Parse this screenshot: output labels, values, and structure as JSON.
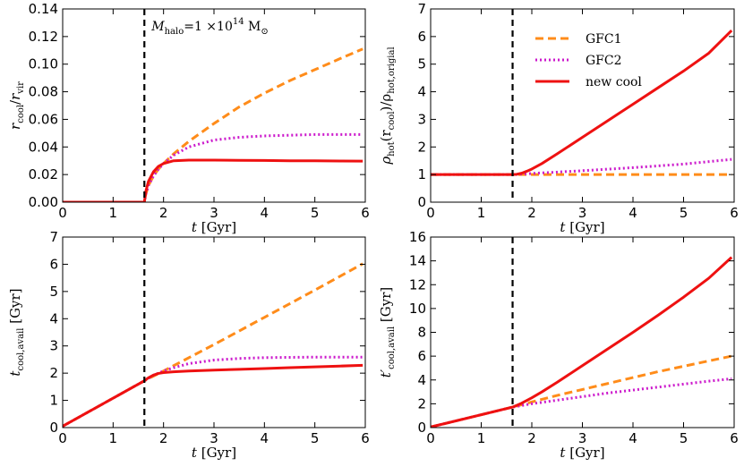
{
  "chart_data": [
    {
      "type": "line",
      "id": "rcool",
      "title": "",
      "xlabel": "t [Gyr]",
      "ylabel": "r_cool/r_vir",
      "ylabel_parts": {
        "main": "r",
        "sub": "cool",
        "sep": "/",
        "main2": "r",
        "sub2": "vir"
      },
      "xlim": [
        0,
        6
      ],
      "ylim": [
        0,
        0.14
      ],
      "xticks": [
        "0",
        "1",
        "2",
        "3",
        "4",
        "5",
        "6"
      ],
      "yticks": [
        "0.00",
        "0.02",
        "0.04",
        "0.06",
        "0.08",
        "0.10",
        "0.12",
        "0.14"
      ],
      "vline_x": 1.62,
      "annotation": {
        "text": "M_halo = 1 ×10^14 M_⊙",
        "symbol": "M",
        "sub": "halo",
        "eq": "=1 ×10",
        "exp": "14",
        "unit": "M",
        "unit_sub": "⊙"
      },
      "series": [
        {
          "name": "GFC1",
          "color": "#ff8c1a",
          "dash": "dashed",
          "x": [
            0,
            1.62,
            1.65,
            1.7,
            1.8,
            1.9,
            2.0,
            2.2,
            2.5,
            3.0,
            3.5,
            4.0,
            4.5,
            5.0,
            5.5,
            5.95
          ],
          "y": [
            0,
            0,
            0.006,
            0.012,
            0.019,
            0.024,
            0.028,
            0.035,
            0.044,
            0.057,
            0.069,
            0.079,
            0.088,
            0.096,
            0.104,
            0.111
          ]
        },
        {
          "name": "GFC2",
          "color": "#cc1acc",
          "dash": "dotted",
          "x": [
            0,
            1.62,
            1.65,
            1.7,
            1.8,
            1.9,
            2.0,
            2.2,
            2.5,
            3.0,
            3.5,
            4.0,
            4.5,
            5.0,
            5.5,
            5.95
          ],
          "y": [
            0,
            0,
            0.006,
            0.012,
            0.019,
            0.024,
            0.028,
            0.034,
            0.04,
            0.045,
            0.047,
            0.048,
            0.0485,
            0.049,
            0.049,
            0.049
          ]
        },
        {
          "name": "new cool",
          "color": "#ee1111",
          "dash": "solid",
          "x": [
            0,
            1.62,
            1.65,
            1.7,
            1.8,
            1.9,
            2.0,
            2.2,
            2.5,
            3.0,
            3.5,
            4.0,
            4.5,
            5.0,
            5.5,
            5.95
          ],
          "y": [
            0,
            0,
            0.008,
            0.015,
            0.022,
            0.026,
            0.028,
            0.03,
            0.0305,
            0.0305,
            0.0303,
            0.0302,
            0.03,
            0.03,
            0.0298,
            0.0297
          ]
        }
      ]
    },
    {
      "type": "line",
      "id": "rhohot",
      "title": "",
      "xlabel": "t [Gyr]",
      "ylabel": "ρ_hot(r_cool)/ρ_hot,origial",
      "ylabel_parts": {
        "main": "ρ",
        "sub": "hot",
        "mid": "(r",
        "sub2": "cool",
        "mid2": ")/ρ",
        "sub3": "hot,origial"
      },
      "xlim": [
        0,
        6
      ],
      "ylim": [
        0,
        7
      ],
      "xticks": [
        "0",
        "1",
        "2",
        "3",
        "4",
        "5",
        "6"
      ],
      "yticks": [
        "0",
        "1",
        "2",
        "3",
        "4",
        "5",
        "6",
        "7"
      ],
      "vline_x": 1.62,
      "legend": {
        "location": "top-center",
        "entries": [
          "GFC1",
          "GFC2",
          "new cool"
        ]
      },
      "series": [
        {
          "name": "GFC1",
          "color": "#ff8c1a",
          "dash": "dashed",
          "x": [
            0,
            1.62,
            2,
            3,
            4,
            5,
            5.95
          ],
          "y": [
            1,
            1,
            1,
            1,
            1,
            1,
            1
          ]
        },
        {
          "name": "GFC2",
          "color": "#cc1acc",
          "dash": "dotted",
          "x": [
            0,
            1.62,
            2,
            3,
            4,
            5,
            5.95
          ],
          "y": [
            1,
            1,
            1.04,
            1.14,
            1.25,
            1.38,
            1.55
          ]
        },
        {
          "name": "new cool",
          "color": "#ee1111",
          "dash": "solid",
          "x": [
            0,
            1.62,
            1.7,
            1.8,
            1.9,
            2.0,
            2.2,
            2.5,
            3.0,
            3.5,
            4.0,
            4.5,
            5.0,
            5.5,
            5.95
          ],
          "y": [
            1,
            1,
            1.01,
            1.05,
            1.12,
            1.2,
            1.4,
            1.75,
            2.35,
            2.95,
            3.55,
            4.15,
            4.75,
            5.4,
            6.22
          ]
        }
      ]
    },
    {
      "type": "line",
      "id": "tcool",
      "title": "",
      "xlabel": "t [Gyr]",
      "ylabel": "t_cool,avail [Gyr]",
      "ylabel_parts": {
        "main": "t",
        "sub": "cool,avail",
        "tail": " [Gyr]"
      },
      "xlim": [
        0,
        6
      ],
      "ylim": [
        0,
        7
      ],
      "xticks": [
        "0",
        "1",
        "2",
        "3",
        "4",
        "5",
        "6"
      ],
      "yticks": [
        "0",
        "1",
        "2",
        "3",
        "4",
        "5",
        "6",
        "7"
      ],
      "vline_x": 1.62,
      "series": [
        {
          "name": "GFC1",
          "color": "#ff8c1a",
          "dash": "dashed",
          "x": [
            0,
            1.62,
            2,
            3,
            4,
            5,
            5.95
          ],
          "y": [
            0.05,
            1.72,
            2.08,
            3.05,
            4.05,
            5.05,
            6.02
          ]
        },
        {
          "name": "GFC2",
          "color": "#cc1acc",
          "dash": "dotted",
          "x": [
            0,
            1.62,
            1.8,
            2.0,
            2.2,
            2.5,
            3.0,
            3.5,
            4.0,
            4.5,
            5.0,
            5.5,
            5.95
          ],
          "y": [
            0.05,
            1.72,
            1.92,
            2.08,
            2.2,
            2.35,
            2.48,
            2.54,
            2.57,
            2.58,
            2.59,
            2.59,
            2.59
          ]
        },
        {
          "name": "new cool",
          "color": "#ee1111",
          "dash": "solid",
          "x": [
            0,
            1.62,
            1.7,
            1.8,
            1.9,
            2.0,
            2.2,
            2.5,
            3.0,
            3.5,
            4.0,
            4.5,
            5.0,
            5.5,
            5.95
          ],
          "y": [
            0.05,
            1.72,
            1.83,
            1.93,
            1.99,
            2.02,
            2.05,
            2.08,
            2.11,
            2.14,
            2.17,
            2.2,
            2.23,
            2.26,
            2.29
          ]
        }
      ]
    },
    {
      "type": "line",
      "id": "tcoolprime",
      "title": "",
      "xlabel": "t [Gyr]",
      "ylabel": "t'_cool,avail [Gyr]",
      "ylabel_parts": {
        "main": "t′",
        "sub": "cool,avail",
        "tail": " [Gyr]"
      },
      "xlim": [
        0,
        6
      ],
      "ylim": [
        0,
        16
      ],
      "xticks": [
        "0",
        "1",
        "2",
        "3",
        "4",
        "5",
        "6"
      ],
      "yticks": [
        "0",
        "2",
        "4",
        "6",
        "8",
        "10",
        "12",
        "14",
        "16"
      ],
      "vline_x": 1.62,
      "series": [
        {
          "name": "GFC1",
          "color": "#ff8c1a",
          "dash": "dashed",
          "x": [
            0,
            1.62,
            2,
            2.5,
            3,
            3.5,
            4,
            4.5,
            5,
            5.5,
            5.95
          ],
          "y": [
            0.05,
            1.72,
            2.15,
            2.7,
            3.2,
            3.7,
            4.2,
            4.7,
            5.15,
            5.6,
            6.0
          ]
        },
        {
          "name": "GFC2",
          "color": "#cc1acc",
          "dash": "dotted",
          "x": [
            0,
            1.62,
            2,
            2.5,
            3,
            3.5,
            4,
            4.5,
            5,
            5.5,
            5.95
          ],
          "y": [
            0.05,
            1.72,
            2.0,
            2.3,
            2.6,
            2.9,
            3.15,
            3.4,
            3.65,
            3.9,
            4.1
          ]
        },
        {
          "name": "new cool",
          "color": "#ee1111",
          "dash": "solid",
          "x": [
            0,
            1.62,
            1.8,
            2.0,
            2.2,
            2.5,
            3.0,
            3.5,
            4.0,
            4.5,
            5.0,
            5.5,
            5.95
          ],
          "y": [
            0.05,
            1.72,
            2.05,
            2.5,
            3.0,
            3.8,
            5.2,
            6.6,
            8.0,
            9.45,
            10.95,
            12.55,
            14.3
          ]
        }
      ]
    }
  ]
}
